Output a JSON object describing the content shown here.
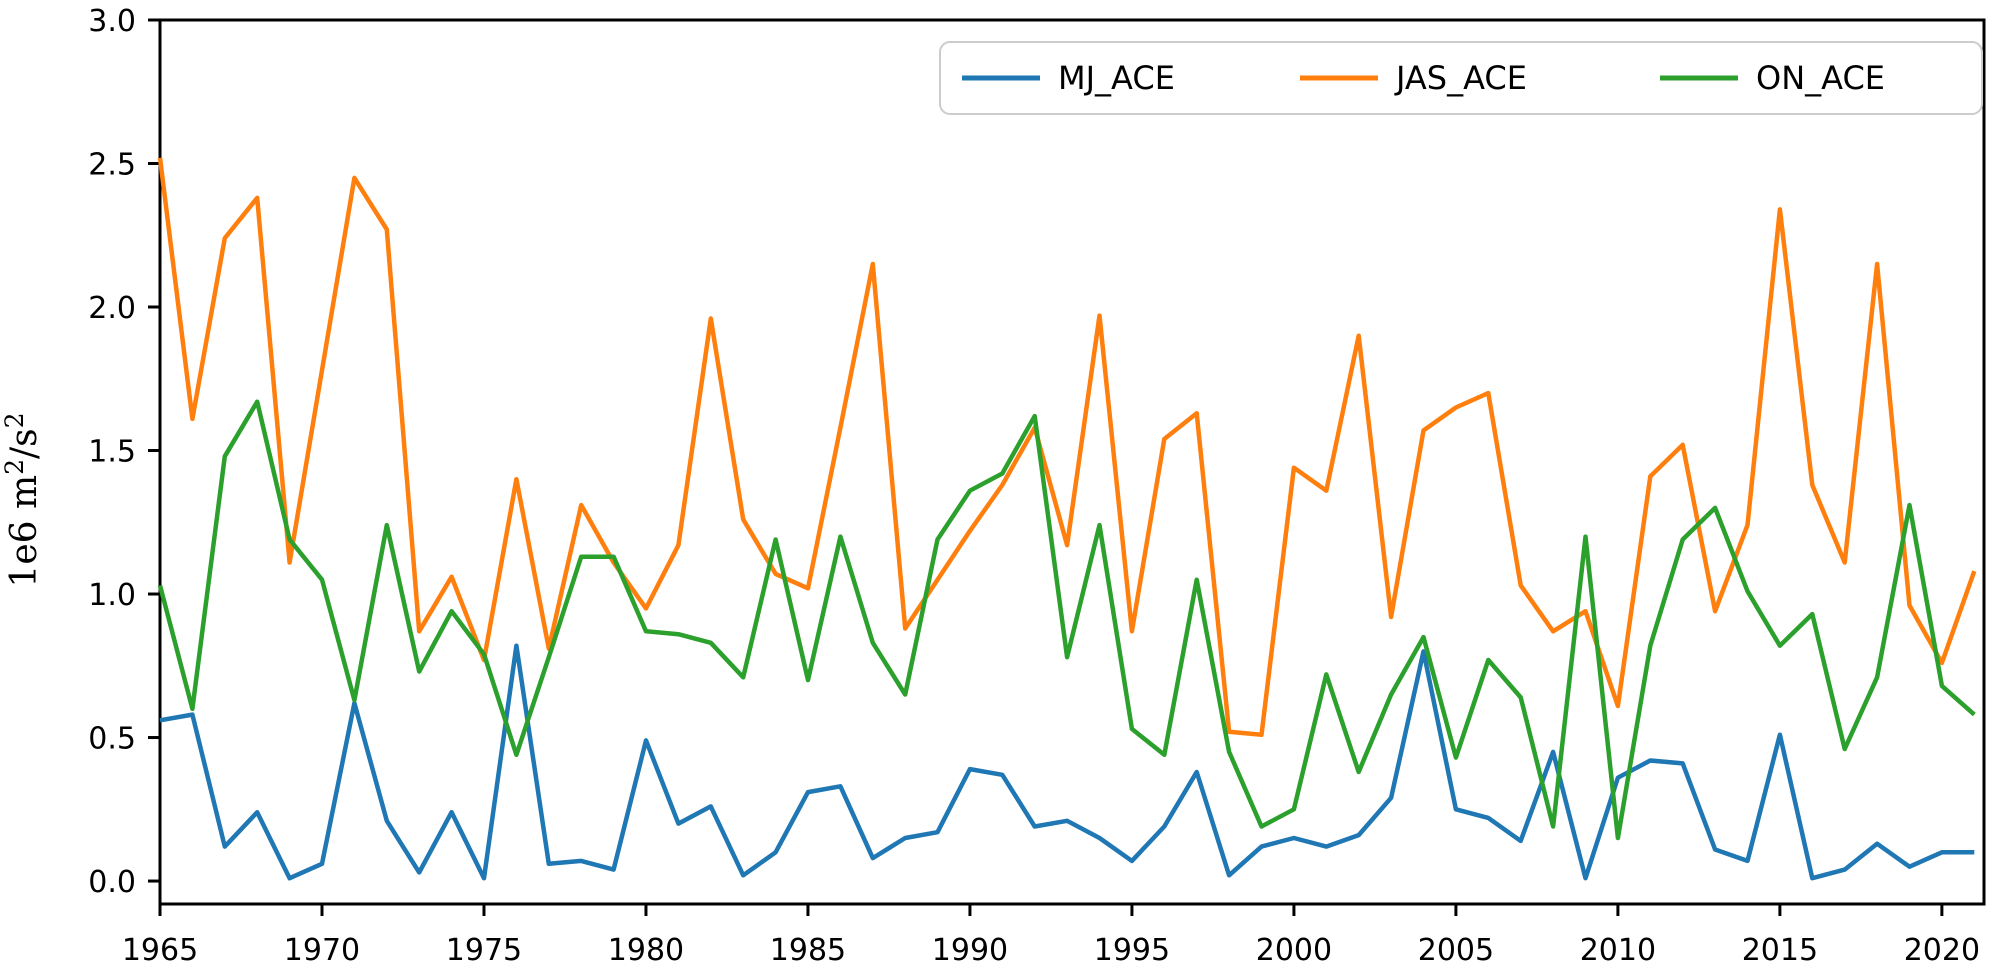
{
  "figure": {
    "ylabel": "1e6 m²/s²",
    "ylabel_parts": [
      {
        "t": "1e6 m"
      },
      {
        "t": "2"
      },
      {
        "t": "/s"
      },
      {
        "t": "2"
      }
    ],
    "background_color": "#ffffff",
    "spine_color": "#000000"
  },
  "axes": {
    "x_tick_labels": [
      "1965",
      "1970",
      "1975",
      "1980",
      "1985",
      "1990",
      "1995",
      "2000",
      "2005",
      "2010",
      "2015",
      "2020"
    ],
    "y_tick_labels": [
      "0.0",
      "0.5",
      "1.0",
      "1.5",
      "2.0",
      "2.5",
      "3.0"
    ]
  },
  "legend": {
    "entries": [
      {
        "label": "MJ_ACE",
        "color": "#1f77b4"
      },
      {
        "label": "JAS_ACE",
        "color": "#ff7f0e"
      },
      {
        "label": "ON_ACE",
        "color": "#2ca02c"
      }
    ]
  },
  "chart_data": {
    "type": "line",
    "title": "",
    "xlabel": "",
    "ylabel": "1e6 m²/s²",
    "grid": false,
    "legend_position": "upper right",
    "xlim": [
      1965,
      2021.3
    ],
    "ylim": [
      -0.08,
      3.0
    ],
    "x_ticks": [
      1965,
      1970,
      1975,
      1980,
      1985,
      1990,
      1995,
      2000,
      2005,
      2010,
      2015,
      2020
    ],
    "y_ticks": [
      0.0,
      0.5,
      1.0,
      1.5,
      2.0,
      2.5,
      3.0
    ],
    "x": [
      1965,
      1966,
      1967,
      1968,
      1969,
      1970,
      1971,
      1972,
      1973,
      1974,
      1975,
      1976,
      1977,
      1978,
      1979,
      1980,
      1981,
      1982,
      1983,
      1984,
      1985,
      1986,
      1987,
      1988,
      1989,
      1990,
      1991,
      1992,
      1993,
      1994,
      1995,
      1996,
      1997,
      1998,
      1999,
      2000,
      2001,
      2002,
      2003,
      2004,
      2005,
      2006,
      2007,
      2008,
      2009,
      2010,
      2011,
      2012,
      2013,
      2014,
      2015,
      2016,
      2017,
      2018,
      2019,
      2020,
      2021
    ],
    "series": [
      {
        "name": "MJ_ACE",
        "color": "#1f77b4",
        "values": [
          0.56,
          0.58,
          0.12,
          0.24,
          0.01,
          0.06,
          0.62,
          0.21,
          0.03,
          0.24,
          0.01,
          0.82,
          0.06,
          0.07,
          0.04,
          0.49,
          0.2,
          0.26,
          0.02,
          0.1,
          0.31,
          0.33,
          0.08,
          0.15,
          0.17,
          0.39,
          0.37,
          0.19,
          0.21,
          0.15,
          0.07,
          0.19,
          0.38,
          0.02,
          0.12,
          0.15,
          0.12,
          0.16,
          0.29,
          0.8,
          0.25,
          0.22,
          0.14,
          0.45,
          0.01,
          0.36,
          0.42,
          0.41,
          0.11,
          0.07,
          0.51,
          0.01,
          0.04,
          0.13,
          0.05,
          0.1,
          0.1
        ]
      },
      {
        "name": "JAS_ACE",
        "color": "#ff7f0e",
        "values": [
          2.52,
          1.61,
          2.24,
          2.38,
          1.11,
          1.78,
          2.45,
          2.27,
          0.87,
          1.06,
          0.77,
          1.4,
          0.81,
          1.31,
          1.11,
          0.95,
          1.17,
          1.96,
          1.26,
          1.07,
          1.02,
          1.58,
          2.15,
          0.88,
          1.05,
          1.22,
          1.38,
          1.58,
          1.17,
          1.97,
          0.87,
          1.54,
          1.63,
          0.52,
          0.51,
          1.44,
          1.36,
          1.9,
          0.92,
          1.57,
          1.65,
          1.7,
          1.03,
          0.87,
          0.94,
          0.61,
          1.41,
          1.52,
          0.94,
          1.24,
          2.34,
          1.38,
          1.11,
          2.15,
          0.96,
          0.76,
          1.08
        ]
      },
      {
        "name": "ON_ACE",
        "color": "#2ca02c",
        "values": [
          1.03,
          0.6,
          1.48,
          1.67,
          1.19,
          1.05,
          0.63,
          1.24,
          0.73,
          0.94,
          0.79,
          0.44,
          0.78,
          1.13,
          1.13,
          0.87,
          0.86,
          0.83,
          0.71,
          1.19,
          0.7,
          1.2,
          0.83,
          0.65,
          1.19,
          1.36,
          1.42,
          1.62,
          0.78,
          1.24,
          0.53,
          0.44,
          1.05,
          0.45,
          0.19,
          0.25,
          0.72,
          0.38,
          0.65,
          0.85,
          0.43,
          0.77,
          0.64,
          0.19,
          1.2,
          0.15,
          0.82,
          1.19,
          1.3,
          1.01,
          0.82,
          0.93,
          0.46,
          0.71,
          1.31,
          0.68,
          0.58
        ]
      }
    ]
  }
}
